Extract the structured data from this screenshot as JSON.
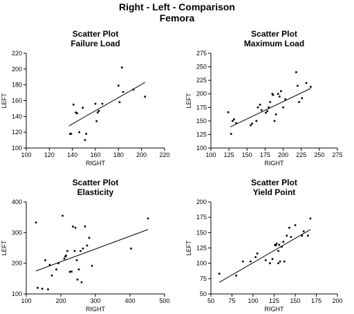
{
  "title": "Right - Left - Comparison",
  "subtitle": "Femora",
  "chart_data": [
    {
      "type": "scatter",
      "title": "Scatter Plot",
      "subtitle": "Failure Load",
      "xlabel": "RIGHT",
      "ylabel": "LEFT",
      "xlim": [
        100,
        220
      ],
      "ylim": [
        100,
        220
      ],
      "xticks": [
        100,
        120,
        140,
        160,
        180,
        200,
        220
      ],
      "yticks": [
        100,
        120,
        140,
        160,
        180,
        200,
        220
      ],
      "points": [
        [
          138,
          118
        ],
        [
          139,
          118
        ],
        [
          141,
          155
        ],
        [
          143,
          145
        ],
        [
          144,
          144
        ],
        [
          146,
          120
        ],
        [
          149,
          151
        ],
        [
          151,
          110
        ],
        [
          152,
          118
        ],
        [
          160,
          156
        ],
        [
          161,
          134
        ],
        [
          162,
          145
        ],
        [
          163,
          147
        ],
        [
          166,
          156
        ],
        [
          180,
          179
        ],
        [
          181,
          158
        ],
        [
          183,
          202
        ],
        [
          184,
          171
        ],
        [
          193,
          174
        ],
        [
          203,
          165
        ]
      ],
      "fit": [
        [
          137,
          128
        ],
        [
          203,
          183
        ]
      ]
    },
    {
      "type": "scatter",
      "title": "Scatter Plot",
      "subtitle": "Maximum Load",
      "xlabel": "RIGHT",
      "ylabel": "LEFT",
      "xlim": [
        100,
        275
      ],
      "ylim": [
        100,
        275
      ],
      "xticks": [
        100,
        125,
        150,
        175,
        200,
        225,
        250,
        275
      ],
      "yticks": [
        100,
        125,
        150,
        175,
        200,
        225,
        250,
        275
      ],
      "points": [
        [
          124,
          166
        ],
        [
          128,
          126
        ],
        [
          130,
          150
        ],
        [
          132,
          153
        ],
        [
          135,
          146
        ],
        [
          155,
          142
        ],
        [
          157,
          145
        ],
        [
          163,
          150
        ],
        [
          165,
          175
        ],
        [
          168,
          180
        ],
        [
          170,
          170
        ],
        [
          176,
          165
        ],
        [
          178,
          168
        ],
        [
          180,
          175
        ],
        [
          182,
          185
        ],
        [
          185,
          200
        ],
        [
          186,
          198
        ],
        [
          188,
          150
        ],
        [
          190,
          162
        ],
        [
          193,
          200
        ],
        [
          195,
          195
        ],
        [
          197,
          205
        ],
        [
          200,
          175
        ],
        [
          203,
          190
        ],
        [
          218,
          240
        ],
        [
          220,
          215
        ],
        [
          222,
          185
        ],
        [
          226,
          192
        ],
        [
          232,
          220
        ],
        [
          238,
          213
        ]
      ],
      "fit": [
        [
          127,
          139
        ],
        [
          238,
          210
        ]
      ]
    },
    {
      "type": "scatter",
      "title": "Scatter Plot",
      "subtitle": "Elasticity",
      "xlabel": "RIGHT",
      "ylabel": "LEFT",
      "xlim": [
        100,
        500
      ],
      "ylim": [
        100,
        400
      ],
      "xticks": [
        100,
        200,
        300,
        400,
        500
      ],
      "yticks": [
        100,
        200,
        300,
        400
      ],
      "points": [
        [
          128,
          333
        ],
        [
          133,
          120
        ],
        [
          146,
          117
        ],
        [
          155,
          210
        ],
        [
          163,
          115
        ],
        [
          168,
          195
        ],
        [
          174,
          160
        ],
        [
          187,
          180
        ],
        [
          193,
          200
        ],
        [
          205,
          355
        ],
        [
          210,
          215
        ],
        [
          213,
          222
        ],
        [
          215,
          225
        ],
        [
          219,
          240
        ],
        [
          226,
          172
        ],
        [
          231,
          173
        ],
        [
          235,
          320
        ],
        [
          240,
          240
        ],
        [
          242,
          316
        ],
        [
          246,
          210
        ],
        [
          248,
          147
        ],
        [
          252,
          180
        ],
        [
          257,
          240
        ],
        [
          260,
          138
        ],
        [
          264,
          248
        ],
        [
          270,
          320
        ],
        [
          276,
          258
        ],
        [
          282,
          283
        ],
        [
          290,
          192
        ],
        [
          403,
          248
        ],
        [
          452,
          346
        ]
      ],
      "fit": [
        [
          128,
          175
        ],
        [
          452,
          310
        ]
      ]
    },
    {
      "type": "scatter",
      "title": "Scatter Plot",
      "subtitle": "Yield Point",
      "xlabel": "RIGHT",
      "ylabel": "LEFT",
      "xlim": [
        50,
        200
      ],
      "ylim": [
        50,
        200
      ],
      "xticks": [
        50,
        75,
        100,
        125,
        150,
        175,
        200
      ],
      "yticks": [
        50,
        75,
        100,
        125,
        150,
        175,
        200
      ],
      "points": [
        [
          60,
          83
        ],
        [
          80,
          80
        ],
        [
          88,
          103
        ],
        [
          97,
          103
        ],
        [
          103,
          110
        ],
        [
          105,
          116
        ],
        [
          115,
          105
        ],
        [
          120,
          100
        ],
        [
          123,
          107
        ],
        [
          126,
          130
        ],
        [
          127,
          129
        ],
        [
          128,
          132
        ],
        [
          130,
          100
        ],
        [
          130,
          120
        ],
        [
          131,
          130
        ],
        [
          132,
          103
        ],
        [
          134,
          127
        ],
        [
          136,
          135
        ],
        [
          137,
          103
        ],
        [
          140,
          145
        ],
        [
          143,
          158
        ],
        [
          145,
          143
        ],
        [
          150,
          162
        ],
        [
          158,
          145
        ],
        [
          160,
          152
        ],
        [
          165,
          145
        ],
        [
          168,
          173
        ]
      ],
      "fit": [
        [
          60,
          69
        ],
        [
          168,
          155
        ]
      ]
    }
  ]
}
